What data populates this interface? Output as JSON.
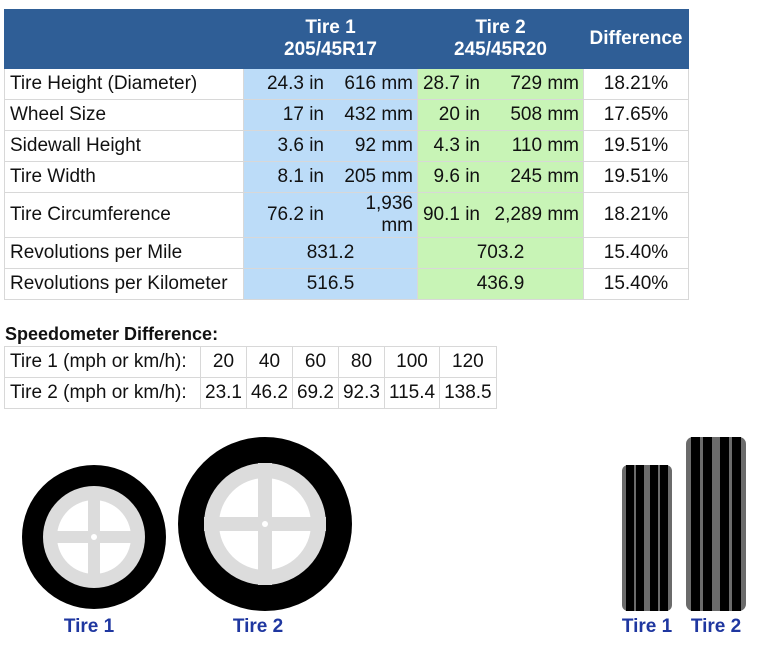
{
  "header": {
    "tire1_name": "Tire 1",
    "tire1_size": "205/45R17",
    "tire2_name": "Tire 2",
    "tire2_size": "245/45R20",
    "difference": "Difference"
  },
  "rows": [
    {
      "label": "Tire Height (Diameter)",
      "t1_in": "24.3 in",
      "t1_mm": "616 mm",
      "t2_in": "28.7 in",
      "t2_mm": "729 mm",
      "diff": "18.21%"
    },
    {
      "label": "Wheel Size",
      "t1_in": "17 in",
      "t1_mm": "432 mm",
      "t2_in": "20 in",
      "t2_mm": "508 mm",
      "diff": "17.65%"
    },
    {
      "label": "Sidewall Height",
      "t1_in": "3.6 in",
      "t1_mm": "92 mm",
      "t2_in": "4.3 in",
      "t2_mm": "110 mm",
      "diff": "19.51%"
    },
    {
      "label": "Tire Width",
      "t1_in": "8.1 in",
      "t1_mm": "205 mm",
      "t2_in": "9.6 in",
      "t2_mm": "245 mm",
      "diff": "19.51%"
    },
    {
      "label": "Tire Circumference",
      "t1_in": "76.2 in",
      "t1_mm": "1,936 mm",
      "t2_in": "90.1 in",
      "t2_mm": "2,289 mm",
      "diff": "18.21%"
    }
  ],
  "rev_rows": [
    {
      "label": "Revolutions per Mile",
      "t1": "831.2",
      "t2": "703.2",
      "diff": "15.40%"
    },
    {
      "label": "Revolutions per Kilometer",
      "t1": "516.5",
      "t2": "436.9",
      "diff": "15.40%"
    }
  ],
  "speedometer": {
    "title": "Speedometer Difference:",
    "tire1_label": "Tire 1 (mph or km/h):",
    "tire2_label": "Tire 2 (mph or km/h):",
    "tire1_values": [
      "20",
      "40",
      "60",
      "80",
      "100",
      "120"
    ],
    "tire2_values": [
      "23.1",
      "46.2",
      "69.2",
      "92.3",
      "115.4",
      "138.5"
    ]
  },
  "illustrations": {
    "side_caption_1": "Tire 1",
    "side_caption_2": "Tire 2",
    "front_caption_1": "Tire 1",
    "front_caption_2": "Tire 2",
    "colors": {
      "tire": "#000000",
      "rim": "#dcdcdc",
      "tread_grey": "#6b6b6b",
      "caption": "#1f37a0"
    }
  }
}
